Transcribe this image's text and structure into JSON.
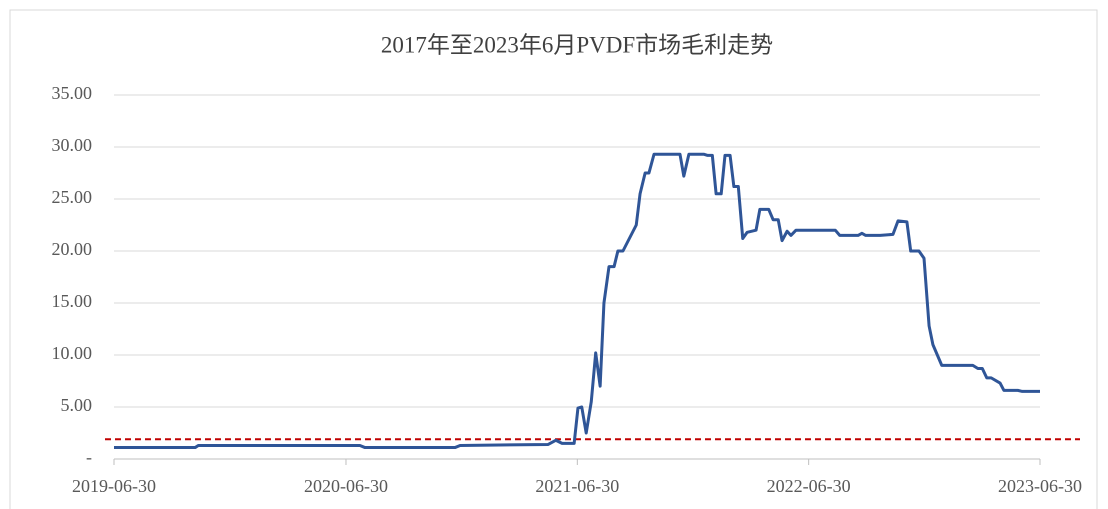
{
  "chart_data": {
    "type": "line",
    "title": "2017年至2023年6月PVDF市场毛利走势",
    "x": [
      "2019-06-30",
      "2019-11-05",
      "2019-11-10",
      "2020-07-22",
      "2020-07-30",
      "2020-12-19",
      "2020-12-27",
      "2021-05-15",
      "2021-05-27",
      "2021-06-06",
      "2021-06-25",
      "2021-07-01",
      "2021-07-07",
      "2021-07-14",
      "2021-07-22",
      "2021-07-29",
      "2021-08-05",
      "2021-08-11",
      "2021-08-19",
      "2021-08-27",
      "2021-09-02",
      "2021-09-10",
      "2021-10-01",
      "2021-10-07",
      "2021-10-15",
      "2021-10-21",
      "2021-10-29",
      "2021-12-09",
      "2021-12-15",
      "2021-12-23",
      "2022-01-16",
      "2022-01-21",
      "2022-01-29",
      "2022-02-04",
      "2022-02-12",
      "2022-02-18",
      "2022-02-26",
      "2022-03-04",
      "2022-03-11",
      "2022-03-18",
      "2022-03-25",
      "2022-04-08",
      "2022-04-14",
      "2022-04-28",
      "2022-05-05",
      "2022-05-13",
      "2022-05-19",
      "2022-05-27",
      "2022-06-02",
      "2022-06-10",
      "2022-08-11",
      "2022-08-18",
      "2022-09-16",
      "2022-09-22",
      "2022-09-28",
      "2022-10-21",
      "2022-11-10",
      "2022-11-18",
      "2022-12-02",
      "2022-12-08",
      "2022-12-21",
      "2022-12-29",
      "2023-01-06",
      "2023-01-12",
      "2023-01-26",
      "2023-02-10",
      "2023-03-16",
      "2023-03-24",
      "2023-03-31",
      "2023-04-07",
      "2023-04-14",
      "2023-04-28",
      "2023-05-04",
      "2023-05-26",
      "2023-06-02",
      "2023-06-30"
    ],
    "series": [
      {
        "name": "毛利",
        "color": "#2f5597",
        "values": [
          1.1,
          1.1,
          1.3,
          1.3,
          1.1,
          1.1,
          1.3,
          1.4,
          1.8,
          1.5,
          1.5,
          4.9,
          5.0,
          2.5,
          5.5,
          10.2,
          7.0,
          15,
          18.5,
          18.5,
          20,
          20,
          22.5,
          25.5,
          27.5,
          27.5,
          29.3,
          29.3,
          27.2,
          29.3,
          29.3,
          29.2,
          29.2,
          25.5,
          25.5,
          29.2,
          29.2,
          26.2,
          26.2,
          21.2,
          21.8,
          22,
          24,
          24,
          23,
          23,
          21,
          21.9,
          21.5,
          22,
          22,
          21.5,
          21.5,
          21.7,
          21.5,
          21.5,
          21.6,
          22.9,
          22.8,
          20,
          20,
          19.3,
          12.8,
          11,
          9,
          9,
          9,
          8.7,
          8.7,
          7.8,
          7.8,
          7.3,
          6.6,
          6.6,
          6.5,
          6.5
        ]
      }
    ],
    "reference_line": {
      "value": 1.9,
      "color": "#c00000"
    },
    "xlim": [
      "2019-06-30",
      "2023-06-30"
    ],
    "xticks": [
      "2019-06-30",
      "2020-06-30",
      "2021-06-30",
      "2022-06-30",
      "2023-06-30"
    ],
    "ylim": [
      0,
      35
    ],
    "yticks": [
      {
        "value": 0,
        "label": "-"
      },
      {
        "value": 5,
        "label": "5.00"
      },
      {
        "value": 10,
        "label": "10.00"
      },
      {
        "value": 15,
        "label": "15.00"
      },
      {
        "value": 20,
        "label": "20.00"
      },
      {
        "value": 25,
        "label": "25.00"
      },
      {
        "value": 30,
        "label": "30.00"
      },
      {
        "value": 35,
        "label": "35.00"
      }
    ],
    "grid": true
  }
}
